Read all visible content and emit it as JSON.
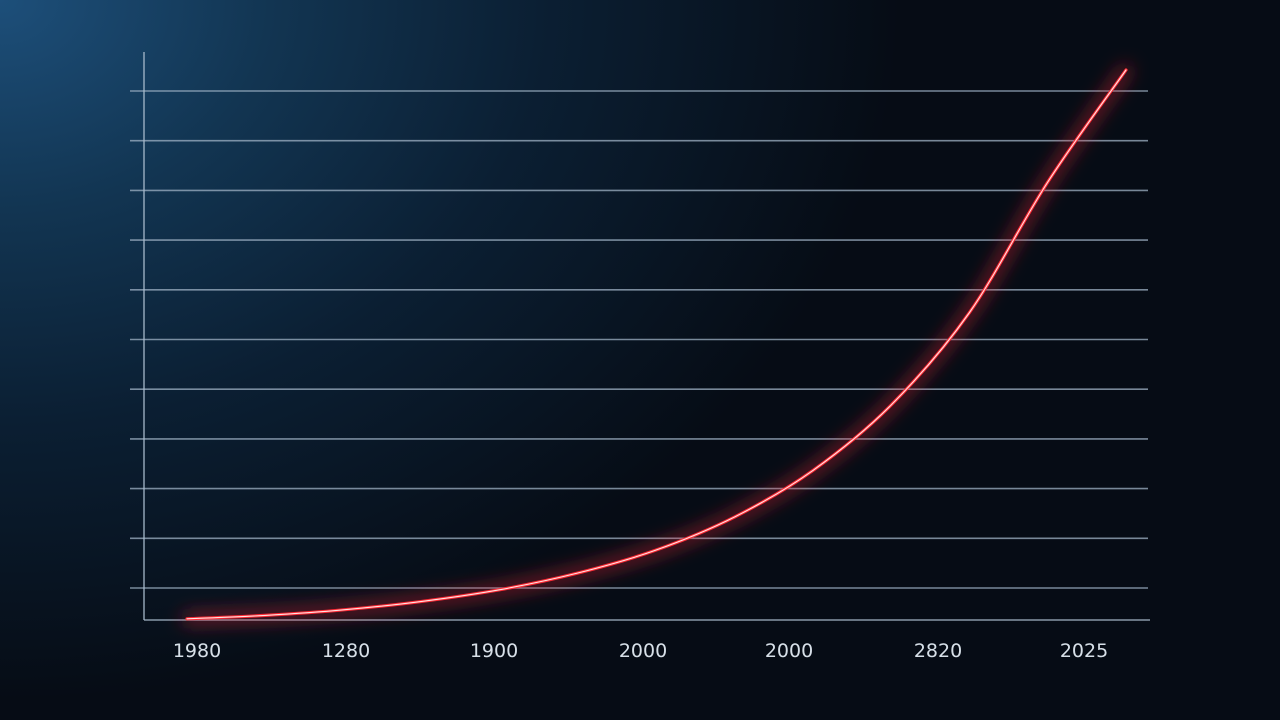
{
  "chart_data": {
    "type": "line",
    "title": "",
    "xlabel": "",
    "ylabel": "",
    "x_tick_labels": [
      "1980",
      "1280",
      "1900",
      "2000",
      "2000",
      "2820",
      "2025"
    ],
    "y_gridline_count": 11,
    "grid": true,
    "legend": "none",
    "series": [
      {
        "color": "#ff2b35",
        "glow": true,
        "shape": "accelerating upward curve",
        "values": [
          2,
          2.6,
          3.6,
          5.1,
          7.2,
          10.2,
          14.3,
          20.2,
          28.5,
          40.2,
          56.7,
          80,
          100
        ]
      }
    ],
    "y_range": [
      0,
      110
    ]
  }
}
